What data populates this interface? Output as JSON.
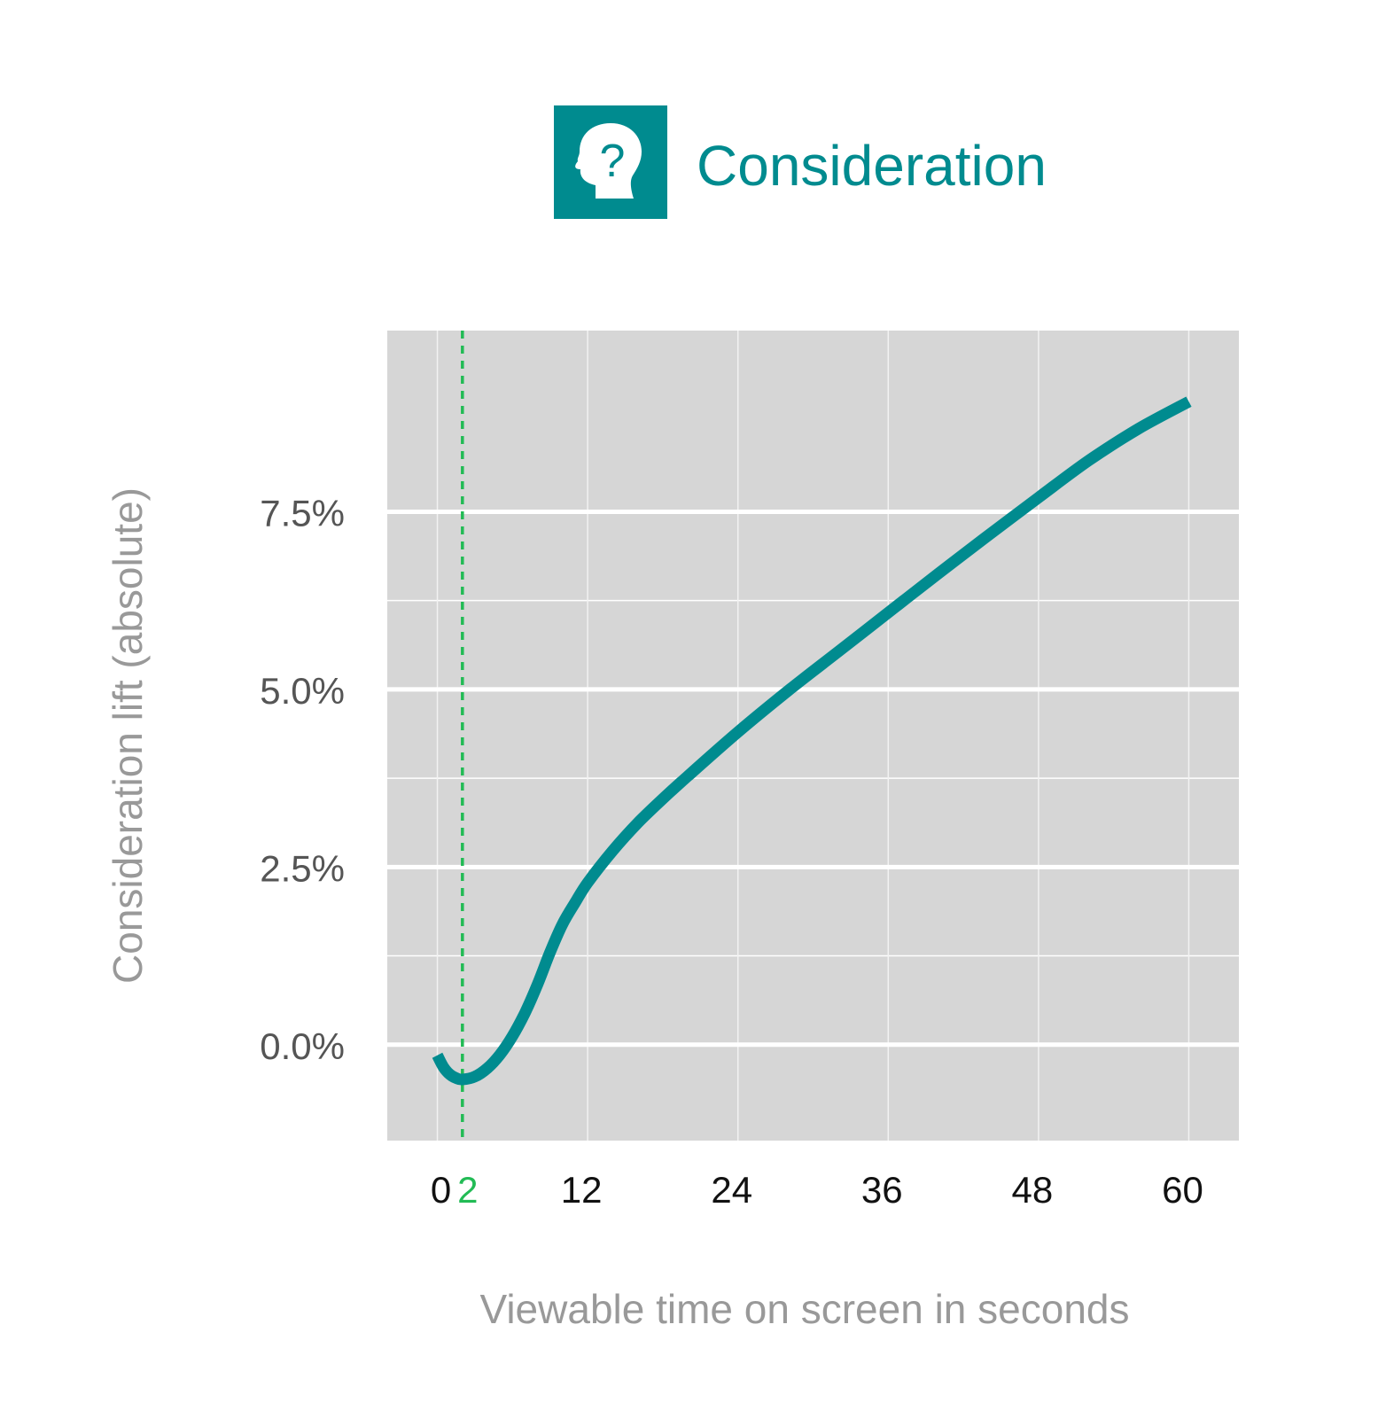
{
  "header": {
    "title": "Consideration",
    "icon": "head-question-icon"
  },
  "colors": {
    "accent": "#008b8f",
    "highlight": "#22bb55",
    "plot_background": "#d6d6d6",
    "y_tick_text": "#555555",
    "x_tick_text": "#111111",
    "axis_title_text": "#999999"
  },
  "chart_data": {
    "type": "line",
    "title": "",
    "xlabel": "Viewable time on screen in seconds",
    "ylabel": "Consideration lift (absolute)",
    "xlim": [
      -4,
      64
    ],
    "ylim": [
      -1.35,
      10.05
    ],
    "x_ticks": [
      0,
      12,
      24,
      36,
      48,
      60
    ],
    "x_tick_labels": [
      "0",
      "12",
      "24",
      "36",
      "48",
      "60"
    ],
    "highlight_tick": {
      "value": 2,
      "label": "2"
    },
    "y_ticks": [
      0,
      2.5,
      5,
      7.5
    ],
    "y_tick_labels": [
      "0.0%",
      "2.5%",
      "5.0%",
      "7.5%"
    ],
    "grid": true,
    "legend": "none",
    "reference_line": {
      "x": 2,
      "style": "dashed"
    },
    "series": [
      {
        "x": [
          0,
          0.5,
          1,
          1.5,
          2,
          3,
          4,
          5,
          6,
          7,
          8,
          9,
          10,
          11,
          12,
          14,
          16,
          18,
          20,
          24,
          28,
          32,
          36,
          40,
          44,
          48,
          52,
          56,
          60
        ],
        "y": [
          -0.15,
          -0.32,
          -0.42,
          -0.47,
          -0.49,
          -0.45,
          -0.33,
          -0.14,
          0.12,
          0.45,
          0.85,
          1.3,
          1.7,
          2.0,
          2.28,
          2.73,
          3.12,
          3.46,
          3.78,
          4.4,
          4.98,
          5.53,
          6.08,
          6.63,
          7.17,
          7.7,
          8.22,
          8.67,
          9.05
        ]
      }
    ]
  }
}
